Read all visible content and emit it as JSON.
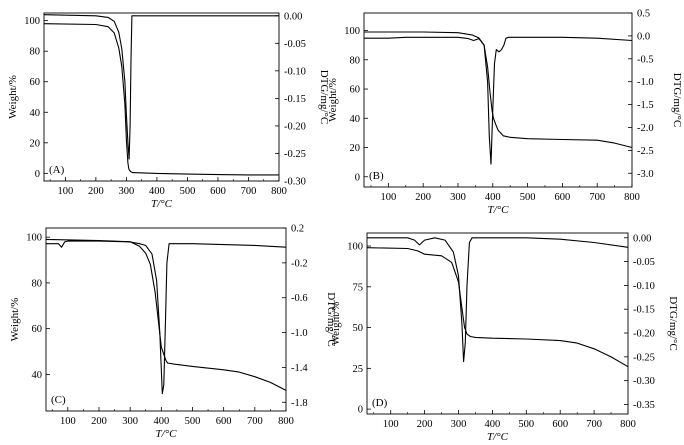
{
  "chart_data": [
    {
      "type": "line",
      "panel_label": "(A)",
      "xlabel": "T/°C",
      "ylabel": "Weight/%",
      "y2label": "DTG/mg/°C",
      "xlim": [
        30,
        800
      ],
      "ylim": [
        -5,
        105
      ],
      "y2lim": [
        -0.3,
        0.005
      ],
      "xticks": [
        100,
        200,
        300,
        400,
        500,
        600,
        700,
        800
      ],
      "yticks": [
        0,
        20,
        40,
        60,
        80,
        100
      ],
      "y2ticks": [
        0.0,
        -0.05,
        -0.1,
        -0.15,
        -0.2,
        -0.25,
        -0.3
      ],
      "y2tick_labels": [
        "0.00",
        "-0.05",
        "-0.10",
        "-0.15",
        "-0.20",
        "-0.25",
        "-0.30"
      ],
      "series": [
        {
          "axis": "left",
          "x": [
            30,
            200,
            240,
            260,
            275,
            285,
            295,
            300,
            305,
            308,
            310,
            315,
            320,
            400,
            500,
            600,
            700,
            800
          ],
          "y": [
            98,
            97.5,
            96,
            92,
            82,
            70,
            45,
            22,
            7,
            3,
            2,
            1,
            0.5,
            0,
            -0.5,
            -0.8,
            -1,
            -1
          ]
        },
        {
          "axis": "right",
          "x": [
            30,
            200,
            240,
            260,
            275,
            285,
            295,
            300,
            305,
            309,
            312,
            315,
            318,
            330,
            400,
            500,
            600,
            700,
            800
          ],
          "y": [
            0.002,
            0.0,
            -0.003,
            -0.01,
            -0.03,
            -0.06,
            -0.12,
            -0.18,
            -0.23,
            -0.26,
            -0.2,
            -0.08,
            0.0,
            0.0,
            0.0,
            0.0,
            0.0,
            0.0,
            0.0
          ]
        }
      ]
    },
    {
      "type": "line",
      "panel_label": "(B)",
      "xlabel": "T/°C",
      "ylabel": "Weight/%",
      "y2label": "DTG/mg/°C",
      "xlim": [
        30,
        800
      ],
      "ylim": [
        -7,
        112
      ],
      "y2lim": [
        -3.3,
        0.5
      ],
      "xticks": [
        100,
        200,
        300,
        400,
        500,
        600,
        700,
        800
      ],
      "yticks": [
        0,
        20,
        40,
        60,
        80,
        100
      ],
      "y2ticks": [
        0.5,
        0.0,
        -0.5,
        -1.0,
        -1.5,
        -2.0,
        -2.5,
        -3.0
      ],
      "y2tick_labels": [
        "0.5",
        "0.0",
        "-0.5",
        "-1.0",
        "-1.5",
        "-2.0",
        "-2.5",
        "-3.0"
      ],
      "series": [
        {
          "axis": "left",
          "x": [
            30,
            200,
            300,
            340,
            360,
            375,
            385,
            392,
            398,
            402,
            408,
            415,
            430,
            450,
            500,
            600,
            700,
            750,
            800
          ],
          "y": [
            99,
            99,
            98.5,
            97,
            95,
            90,
            75,
            58,
            45,
            40,
            36,
            32,
            28,
            27,
            26,
            25.5,
            25,
            23,
            20
          ]
        },
        {
          "axis": "right",
          "x": [
            30,
            100,
            150,
            200,
            250,
            300,
            330,
            345,
            360,
            375,
            385,
            390,
            395,
            400,
            405,
            410,
            418,
            425,
            432,
            438,
            445,
            500,
            600,
            700,
            800
          ],
          "y": [
            -0.05,
            -0.05,
            -0.03,
            -0.03,
            -0.03,
            -0.03,
            -0.06,
            -0.1,
            -0.06,
            -0.2,
            -1.0,
            -2.2,
            -2.8,
            -1.6,
            -0.6,
            -0.3,
            -0.35,
            -0.3,
            -0.2,
            -0.05,
            -0.03,
            -0.03,
            -0.03,
            -0.05,
            -0.1
          ]
        }
      ]
    },
    {
      "type": "line",
      "panel_label": "(C)",
      "xlabel": "T/°C",
      "ylabel": "Weight/%",
      "y2label": "DTG/mg/°C",
      "xlim": [
        30,
        800
      ],
      "ylim": [
        24,
        104
      ],
      "y2lim": [
        -1.9,
        0.2
      ],
      "xticks": [
        100,
        200,
        300,
        400,
        500,
        600,
        700,
        800
      ],
      "yticks": [
        40,
        60,
        80,
        100
      ],
      "y2ticks": [
        0.2,
        -0.2,
        -0.6,
        -1.0,
        -1.4,
        -1.8
      ],
      "y2tick_labels": [
        "0.2",
        "-0.2",
        "-0.6",
        "-1.0",
        "-1.4",
        "-1.8"
      ],
      "series": [
        {
          "axis": "left",
          "x": [
            30,
            200,
            300,
            330,
            350,
            365,
            380,
            390,
            400,
            410,
            415,
            420,
            440,
            500,
            600,
            650,
            700,
            750,
            800
          ],
          "y": [
            99,
            98.5,
            98,
            96,
            93,
            88,
            76,
            64,
            52,
            48,
            46,
            45,
            44.5,
            43.5,
            42,
            41,
            39,
            36.5,
            33
          ]
        },
        {
          "axis": "right",
          "x": [
            30,
            70,
            80,
            90,
            100,
            200,
            300,
            330,
            350,
            370,
            385,
            395,
            403,
            408,
            413,
            418,
            425,
            440,
            500,
            600,
            700,
            800
          ],
          "y": [
            0.02,
            0.02,
            -0.02,
            0.04,
            0.05,
            0.05,
            0.04,
            0.02,
            0.0,
            -0.1,
            -0.4,
            -1.0,
            -1.7,
            -1.6,
            -0.9,
            -0.2,
            0.02,
            0.02,
            0.02,
            0.01,
            0.0,
            -0.02
          ]
        }
      ]
    },
    {
      "type": "line",
      "panel_label": "(D)",
      "xlabel": "T/°C",
      "ylabel": "Weight/%",
      "y2label": "DTG/mg/°C",
      "xlim": [
        30,
        800
      ],
      "ylim": [
        -3,
        108
      ],
      "y2lim": [
        -0.37,
        0.01
      ],
      "xticks": [
        100,
        200,
        300,
        400,
        500,
        600,
        700,
        800
      ],
      "yticks": [
        0,
        25,
        50,
        75,
        100
      ],
      "y2ticks": [
        0.0,
        -0.05,
        -0.1,
        -0.15,
        -0.2,
        -0.25,
        -0.3,
        -0.35
      ],
      "y2tick_labels": [
        "0.00",
        "-0.05",
        "-0.10",
        "-0.15",
        "-0.20",
        "-0.25",
        "-0.30",
        "-0.35"
      ],
      "series": [
        {
          "axis": "left",
          "x": [
            30,
            150,
            180,
            200,
            250,
            280,
            300,
            310,
            318,
            325,
            335,
            350,
            400,
            500,
            600,
            650,
            700,
            750,
            800
          ],
          "y": [
            99,
            98.5,
            97,
            95,
            94,
            90,
            78,
            62,
            50,
            46,
            44.5,
            44,
            43.5,
            43,
            42,
            40.5,
            37,
            32,
            26
          ]
        },
        {
          "axis": "right",
          "x": [
            30,
            150,
            170,
            185,
            200,
            230,
            260,
            285,
            300,
            310,
            315,
            320,
            325,
            332,
            340,
            400,
            500,
            600,
            700,
            800
          ],
          "y": [
            0.0,
            0.0,
            -0.005,
            -0.015,
            -0.005,
            0.0,
            -0.005,
            -0.03,
            -0.08,
            -0.18,
            -0.26,
            -0.22,
            -0.1,
            -0.01,
            0.0,
            0.0,
            0.0,
            -0.003,
            -0.01,
            -0.02
          ]
        }
      ]
    }
  ]
}
